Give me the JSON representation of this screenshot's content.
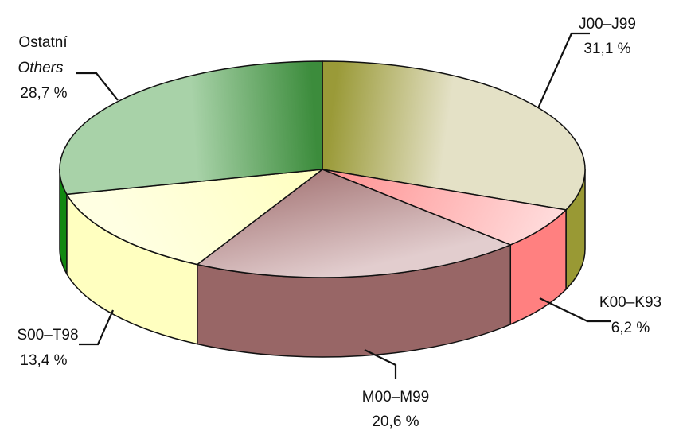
{
  "chart_data": {
    "type": "pie",
    "style": "3d",
    "slices": [
      {
        "code": "J00–J99",
        "value": 31.1,
        "value_label": "31,1 %",
        "color": "#9a9a38",
        "light": "#e4e1c6",
        "side": "#999934"
      },
      {
        "code": "K00–K93",
        "value": 6.2,
        "value_label": "6,2 %",
        "color": "#ff8e8e",
        "light": "#ffdada",
        "side": "#ff8080"
      },
      {
        "code": "M00–M99",
        "value": 20.6,
        "value_label": "20,6 %",
        "color": "#9b6868",
        "light": "#e2cdce",
        "side": "#986666"
      },
      {
        "code": "S00–T98",
        "value": 13.4,
        "value_label": "13,4 %",
        "color": "#ffffbe",
        "light": "#ffffe2",
        "side": "#ffffc0"
      },
      {
        "code": "Ostatní",
        "code_en": "Others",
        "value": 28.7,
        "value_label": "28,7 %",
        "color": "#3c8c3c",
        "light": "#a8d2a8",
        "side": "#118811"
      }
    ],
    "start_angle_deg": 90,
    "direction": "clockwise"
  }
}
